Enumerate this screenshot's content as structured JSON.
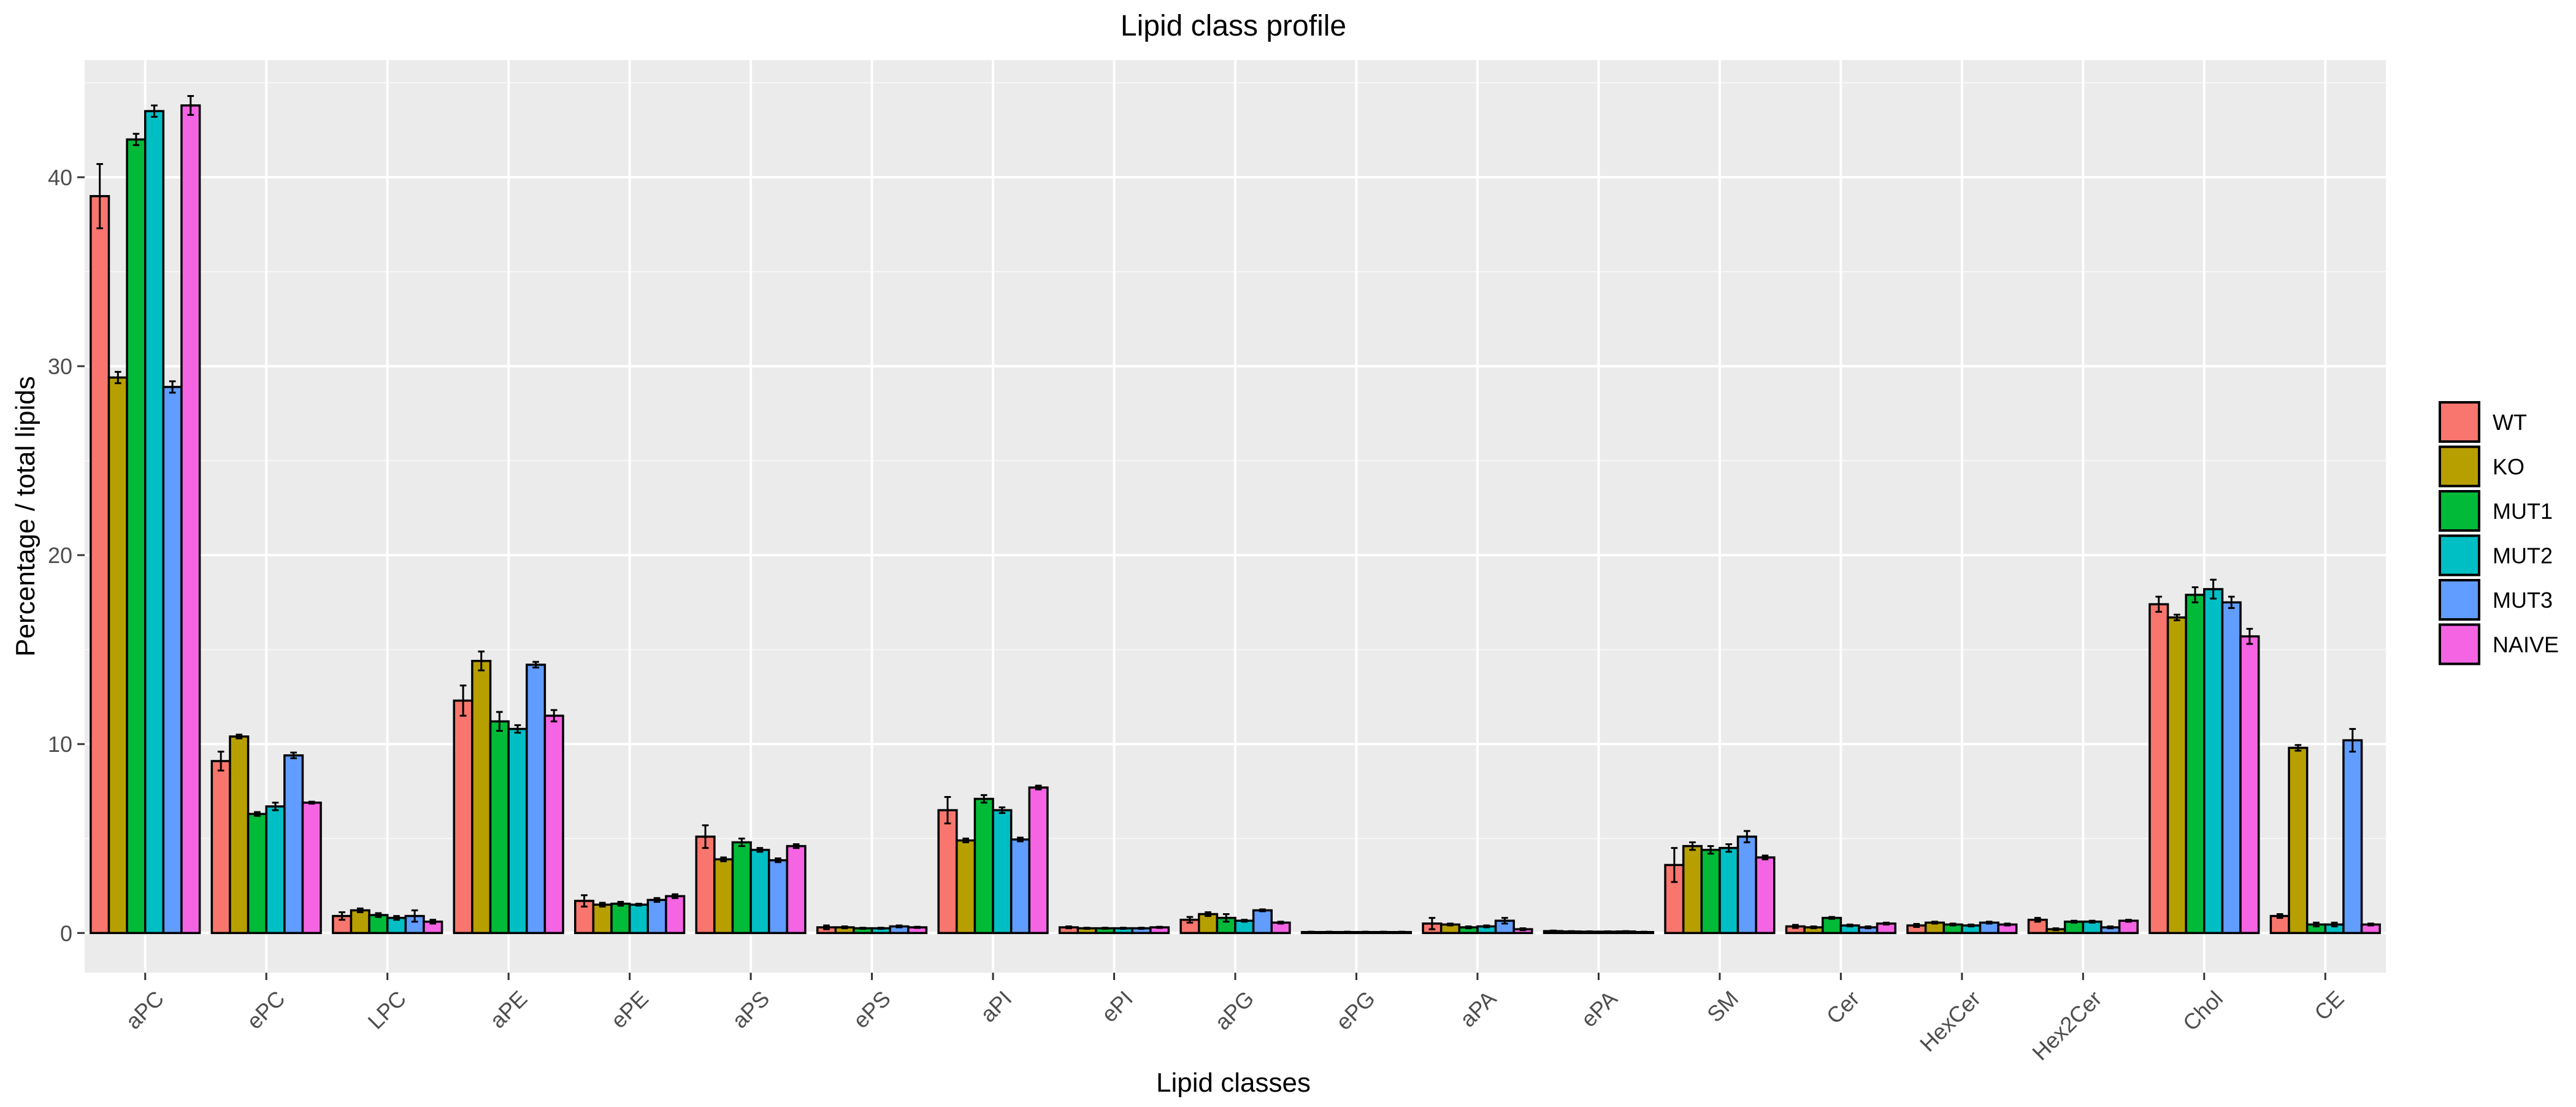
{
  "chart_data": {
    "type": "bar",
    "title": "Lipid class profile",
    "xlabel": "Lipid classes",
    "ylabel": "Percentage / total lipids",
    "ylim": [
      -2.1,
      46.2
    ],
    "yticks": [
      0,
      10,
      20,
      30,
      40
    ],
    "grid": true,
    "legend_position": "right",
    "categories": [
      "aPC",
      "ePC",
      "LPC",
      "aPE",
      "ePE",
      "aPS",
      "ePS",
      "aPI",
      "ePI",
      "aPG",
      "ePG",
      "aPA",
      "ePA",
      "SM",
      "Cer",
      "HexCer",
      "Hex2Cer",
      "Chol",
      "CE"
    ],
    "series": [
      {
        "name": "WT",
        "color": "#F8766D",
        "values": [
          39.0,
          9.1,
          0.9,
          12.3,
          1.7,
          5.1,
          0.3,
          6.5,
          0.3,
          0.7,
          0.05,
          0.5,
          0.1,
          3.6,
          0.35,
          0.4,
          0.7,
          17.4,
          0.9
        ],
        "errors": [
          1.7,
          0.5,
          0.2,
          0.8,
          0.3,
          0.6,
          0.1,
          0.7,
          0.05,
          0.15,
          0.02,
          0.3,
          0.03,
          0.9,
          0.08,
          0.08,
          0.1,
          0.4,
          0.1
        ]
      },
      {
        "name": "KO",
        "color": "#B79F00",
        "values": [
          29.4,
          10.4,
          1.2,
          14.4,
          1.5,
          3.9,
          0.3,
          4.9,
          0.25,
          1.0,
          0.05,
          0.45,
          0.08,
          4.6,
          0.3,
          0.55,
          0.2,
          16.7,
          9.8
        ],
        "errors": [
          0.3,
          0.1,
          0.1,
          0.5,
          0.1,
          0.1,
          0.05,
          0.1,
          0.03,
          0.1,
          0.02,
          0.05,
          0.02,
          0.2,
          0.05,
          0.05,
          0.05,
          0.15,
          0.15
        ]
      },
      {
        "name": "MUT1",
        "color": "#00BA38",
        "values": [
          42.0,
          6.3,
          0.95,
          11.2,
          1.55,
          4.8,
          0.25,
          7.1,
          0.25,
          0.8,
          0.05,
          0.3,
          0.07,
          4.4,
          0.8,
          0.45,
          0.6,
          17.9,
          0.45
        ],
        "errors": [
          0.3,
          0.1,
          0.1,
          0.5,
          0.1,
          0.2,
          0.03,
          0.2,
          0.03,
          0.2,
          0.02,
          0.05,
          0.02,
          0.2,
          0.05,
          0.05,
          0.05,
          0.4,
          0.1
        ]
      },
      {
        "name": "MUT2",
        "color": "#00BFC4",
        "values": [
          43.5,
          6.7,
          0.8,
          10.8,
          1.5,
          4.4,
          0.25,
          6.5,
          0.25,
          0.65,
          0.05,
          0.35,
          0.07,
          4.5,
          0.4,
          0.4,
          0.6,
          18.2,
          0.45
        ],
        "errors": [
          0.3,
          0.2,
          0.1,
          0.2,
          0.05,
          0.1,
          0.03,
          0.15,
          0.03,
          0.05,
          0.02,
          0.05,
          0.02,
          0.2,
          0.05,
          0.05,
          0.05,
          0.5,
          0.1
        ]
      },
      {
        "name": "MUT3",
        "color": "#619CFF",
        "values": [
          28.9,
          9.4,
          0.9,
          14.2,
          1.75,
          3.85,
          0.35,
          4.95,
          0.25,
          1.2,
          0.05,
          0.65,
          0.08,
          5.1,
          0.3,
          0.55,
          0.3,
          17.5,
          10.2
        ],
        "errors": [
          0.3,
          0.15,
          0.3,
          0.15,
          0.1,
          0.1,
          0.05,
          0.1,
          0.03,
          0.05,
          0.02,
          0.15,
          0.02,
          0.3,
          0.05,
          0.05,
          0.05,
          0.3,
          0.6
        ]
      },
      {
        "name": "NAIVE",
        "color": "#F564E3",
        "values": [
          43.8,
          6.9,
          0.6,
          11.5,
          1.95,
          4.6,
          0.3,
          7.7,
          0.3,
          0.55,
          0.05,
          0.2,
          0.05,
          4.0,
          0.5,
          0.45,
          0.65,
          15.7,
          0.45
        ],
        "errors": [
          0.5,
          0.05,
          0.1,
          0.3,
          0.1,
          0.1,
          0.03,
          0.1,
          0.03,
          0.05,
          0.02,
          0.05,
          0.02,
          0.1,
          0.05,
          0.05,
          0.05,
          0.4,
          0.05
        ]
      }
    ]
  }
}
